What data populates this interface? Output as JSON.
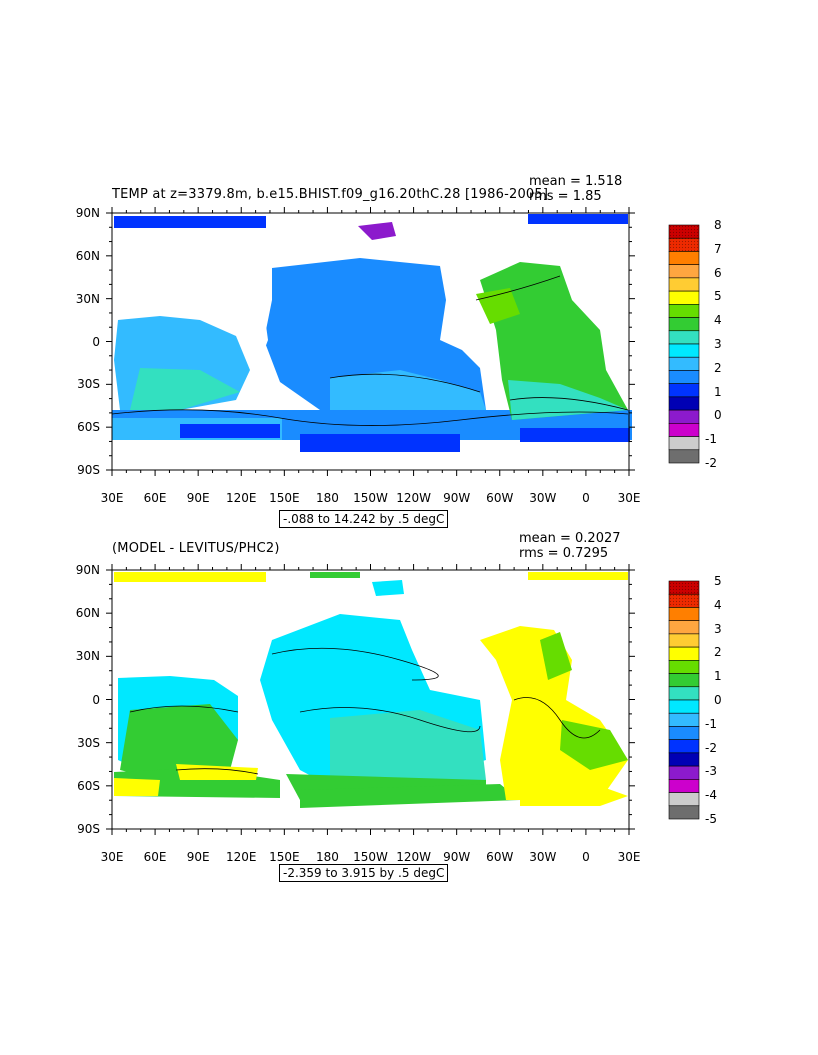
{
  "panels": [
    {
      "title": "TEMP at z=3379.8m, b.e15.BHIST.f09_g16.20thC.28 [1986-2005]",
      "mean_text": "mean = 1.518",
      "rms_text": "rms = 1.85",
      "range_text": "-.088 to 14.242 by .5 degC",
      "lat_labels": [
        "90N",
        "60N",
        "30N",
        "0",
        "30S",
        "60S",
        "90S"
      ],
      "lon_labels": [
        "30E",
        "60E",
        "90E",
        "120E",
        "150E",
        "180",
        "150W",
        "120W",
        "90W",
        "60W",
        "30W",
        "0",
        "30E"
      ],
      "colorbar_labels": [
        "8",
        "7",
        "6",
        "5",
        "4",
        "3",
        "2",
        "1",
        "0",
        "-1",
        "-2"
      ],
      "colorbar_colors": [
        "#cc0000",
        "#ee2a00",
        "#ff7f00",
        "#ffa640",
        "#ffcc33",
        "#ffff00",
        "#66dd00",
        "#33cc33",
        "#33e0c0",
        "#00e8ff",
        "#33bbff",
        "#1a8cff",
        "#0033ff",
        "#0000b4",
        "#8c1acc",
        "#cc00cc",
        "#cccccc",
        "#6e6e6e"
      ]
    },
    {
      "title": "(MODEL - LEVITUS/PHC2)",
      "mean_text": "mean = 0.2027",
      "rms_text": "rms = 0.7295",
      "range_text": "-2.359 to 3.915 by .5 degC",
      "lat_labels": [
        "90N",
        "60N",
        "30N",
        "0",
        "30S",
        "60S",
        "90S"
      ],
      "lon_labels": [
        "30E",
        "60E",
        "90E",
        "120E",
        "150E",
        "180",
        "150W",
        "120W",
        "90W",
        "60W",
        "30W",
        "0",
        "30E"
      ],
      "colorbar_labels": [
        "5",
        "4",
        "3",
        "2",
        "1",
        "0",
        "-1",
        "-2",
        "-3",
        "-4",
        "-5"
      ],
      "colorbar_colors": [
        "#cc0000",
        "#ee2a00",
        "#ff7f00",
        "#ffa640",
        "#ffcc33",
        "#ffff00",
        "#66dd00",
        "#33cc33",
        "#33e0c0",
        "#00e8ff",
        "#33bbff",
        "#1a8cff",
        "#0033ff",
        "#0000b4",
        "#8c1acc",
        "#cc00cc",
        "#cccccc",
        "#6e6e6e"
      ]
    }
  ]
}
